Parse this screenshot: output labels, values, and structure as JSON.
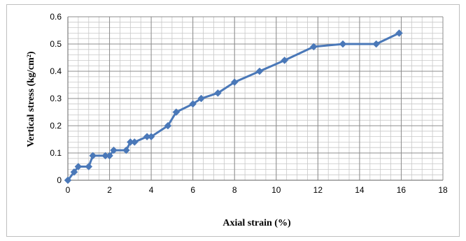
{
  "chart_data": {
    "type": "line",
    "title": "",
    "xlabel": "Axial strain (%)",
    "ylabel": "Vertical stress (kg/cm²)",
    "xlim": [
      0,
      18
    ],
    "ylim": [
      0,
      0.6
    ],
    "x_ticks": [
      0,
      2,
      4,
      6,
      8,
      10,
      12,
      14,
      16,
      18
    ],
    "y_ticks": [
      0,
      0.1,
      0.2,
      0.3,
      0.4,
      0.5,
      0.6
    ],
    "x_tick_labels": [
      "0",
      "2",
      "4",
      "6",
      "8",
      "10",
      "12",
      "14",
      "16",
      "18"
    ],
    "y_tick_labels": [
      "0",
      "0.1",
      "0.2",
      "0.3",
      "0.4",
      "0.5",
      "0.6"
    ],
    "grid": true,
    "minor_grid": true,
    "legend": "none",
    "series": [
      {
        "marker": "diamond",
        "color": "#4a78b8",
        "x": [
          0,
          0.3,
          0.5,
          1.0,
          1.2,
          1.8,
          2.0,
          2.2,
          2.8,
          3.0,
          3.2,
          3.8,
          4.0,
          4.8,
          5.2,
          6.0,
          6.4,
          7.2,
          8.0,
          9.2,
          10.4,
          11.8,
          13.2,
          14.8,
          15.9
        ],
        "y": [
          0,
          0.03,
          0.05,
          0.05,
          0.09,
          0.09,
          0.09,
          0.11,
          0.11,
          0.14,
          0.14,
          0.16,
          0.16,
          0.2,
          0.25,
          0.28,
          0.3,
          0.32,
          0.36,
          0.4,
          0.44,
          0.49,
          0.5,
          0.5,
          0.54
        ]
      }
    ]
  }
}
